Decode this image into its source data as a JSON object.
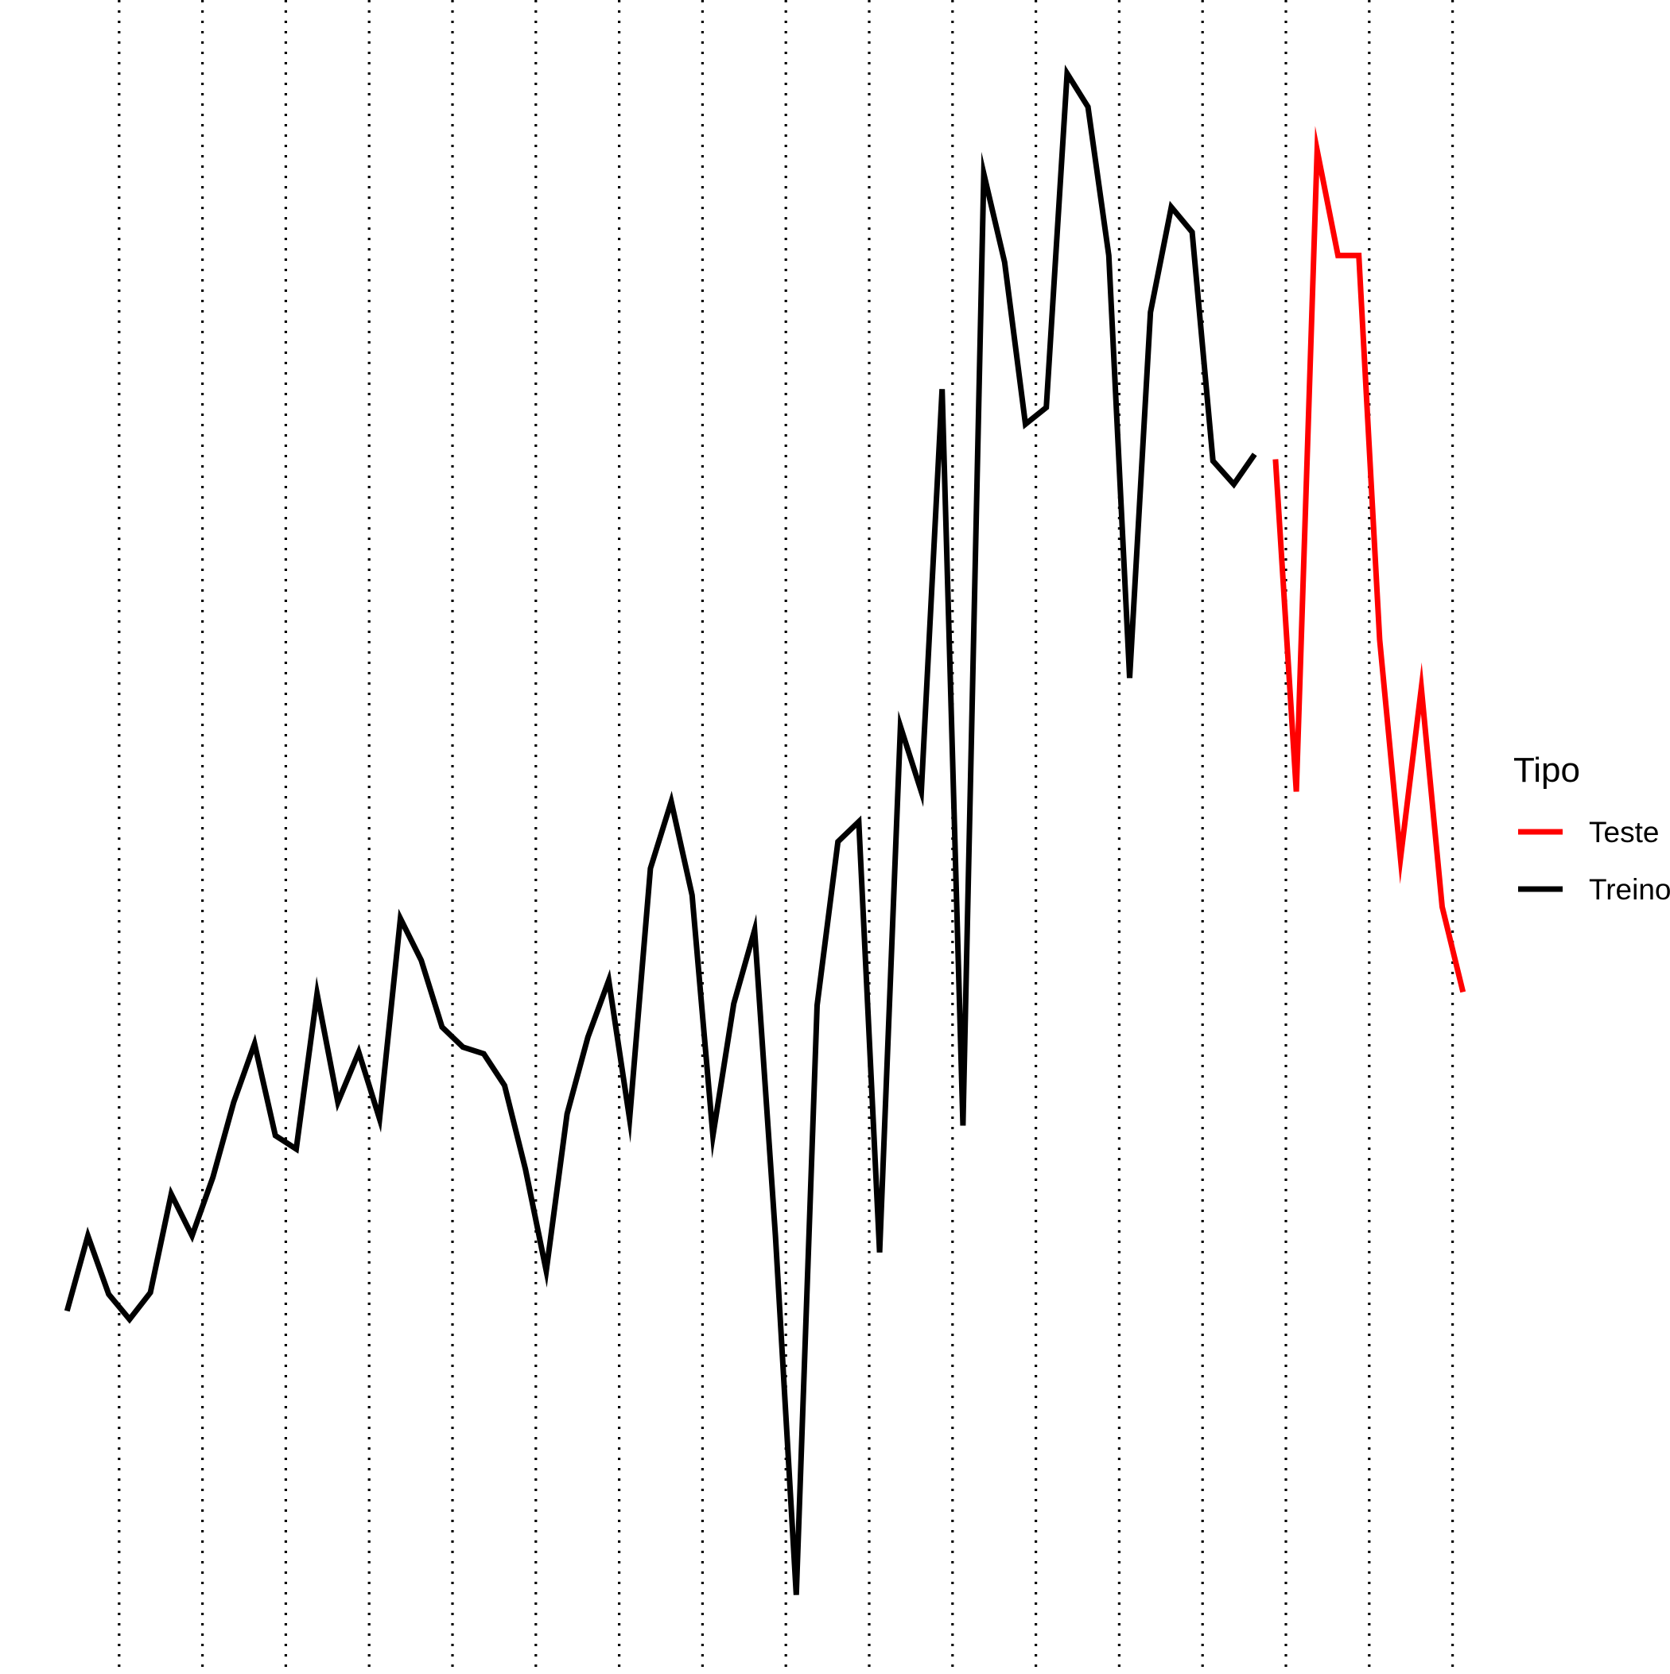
{
  "chart_data": {
    "type": "line",
    "title": "",
    "xlabel": "",
    "ylabel": "",
    "grid": {
      "vertical_dotted": true,
      "horizontal": false
    },
    "xlim": [
      0.5,
      70
    ],
    "ylim": [
      0,
      100
    ],
    "vgrid_x": [
      3.5,
      7.5,
      11.5,
      15.5,
      19.5,
      23.5,
      27.5,
      31.5,
      35.5,
      39.5,
      43.5,
      47.5,
      51.5,
      55.5,
      59.5,
      63.5,
      67.5
    ],
    "legend": {
      "title": "Tipo",
      "placement": "right",
      "entries": [
        {
          "label": "Teste",
          "color": "#ff0000"
        },
        {
          "label": "Treino",
          "color": "#000000"
        }
      ]
    },
    "series": [
      {
        "name": "Treino",
        "color": "#000000",
        "x": [
          1,
          2,
          3,
          4,
          5,
          6,
          7,
          8,
          9,
          10,
          11,
          12,
          13,
          14,
          15,
          16,
          17,
          18,
          19,
          20,
          21,
          22,
          23,
          24,
          25,
          26,
          27,
          28,
          29,
          30,
          31,
          32,
          33,
          34,
          35,
          36,
          37,
          38,
          39,
          40,
          41,
          42,
          43,
          44,
          45,
          46,
          47,
          48,
          49,
          50,
          51,
          52,
          53,
          54,
          55,
          56,
          57,
          58
        ],
        "values": [
          21.5,
          26.0,
          22.5,
          21.0,
          22.6,
          28.5,
          26.0,
          29.5,
          34.0,
          37.5,
          32.0,
          31.2,
          40.5,
          34.0,
          37.0,
          33.0,
          45.0,
          42.5,
          38.5,
          37.3,
          36.9,
          35.0,
          30.0,
          23.9,
          33.3,
          37.9,
          41.3,
          33.0,
          48.0,
          52.0,
          46.4,
          32.0,
          39.9,
          44.3,
          26.0,
          4.5,
          39.8,
          49.6,
          50.8,
          25.0,
          56.5,
          52.6,
          76.7,
          32.6,
          89.6,
          84.3,
          74.6,
          75.6,
          95.6,
          93.6,
          84.7,
          59.4,
          81.3,
          87.6,
          86.1,
          72.4,
          71.0,
          72.8
        ]
      },
      {
        "name": "Teste",
        "color": "#ff0000",
        "x": [
          59,
          60,
          61,
          62,
          63,
          64,
          65,
          66,
          67,
          68
        ],
        "values": [
          72.5,
          52.6,
          91.0,
          84.7,
          84.7,
          61.7,
          48.6,
          58.8,
          45.7,
          40.6
        ]
      }
    ]
  }
}
